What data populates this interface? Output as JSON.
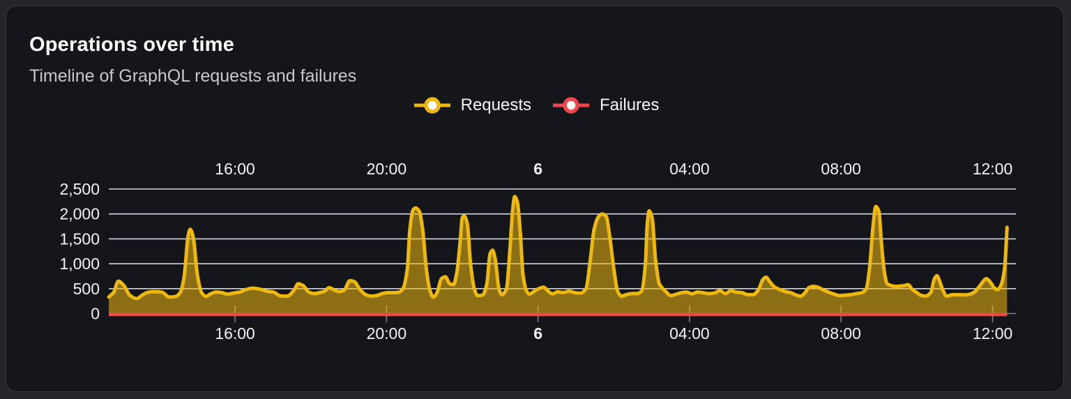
{
  "panel": {
    "title": "Operations over time",
    "subtitle": "Timeline of GraphQL requests and failures"
  },
  "legend": [
    {
      "label": "Requests",
      "color": "#eeb90f"
    },
    {
      "label": "Failures",
      "color": "#ef474c"
    }
  ],
  "colors": {
    "page_background": "#24262b",
    "panel_background": "#14161b",
    "gridline": "#d2d5df",
    "axis_line": "#85868c",
    "tick": "#85868c",
    "axis_label": "#f1f2f4",
    "requests_line": "#eeb90f",
    "requests_fill_opacity": 0.55,
    "failures_line": "#ef474c"
  },
  "chart_data": {
    "type": "area",
    "title": "Operations over time",
    "subtitle": "Timeline of GraphQL requests and failures",
    "grid": true,
    "legend_position": "top-center",
    "x_axis": {
      "kind": "time",
      "unit": "minutes_after_start",
      "start_clock": "12:40",
      "span_minutes": 1437,
      "labels_shown": "top and bottom",
      "ticks": [
        {
          "t": 200,
          "label": "16:00",
          "bold": false
        },
        {
          "t": 440,
          "label": "20:00",
          "bold": false
        },
        {
          "t": 680,
          "label": "6",
          "bold": true
        },
        {
          "t": 920,
          "label": "04:00",
          "bold": false
        },
        {
          "t": 1160,
          "label": "08:00",
          "bold": false
        },
        {
          "t": 1400,
          "label": "12:00",
          "bold": false
        }
      ]
    },
    "y_axis": {
      "min": 0,
      "max": 2500,
      "tick_interval": 500,
      "ticks": [
        {
          "v": 0,
          "label": "0"
        },
        {
          "v": 500,
          "label": "500"
        },
        {
          "v": 1000,
          "label": "1,000"
        },
        {
          "v": 1500,
          "label": "1,500"
        },
        {
          "v": 2000,
          "label": "2,000"
        },
        {
          "v": 2500,
          "label": "2,500"
        }
      ]
    },
    "series": [
      {
        "name": "Requests",
        "color": "#eeb90f",
        "fill_opacity": 0.55,
        "points": [
          [
            0,
            330
          ],
          [
            8,
            430
          ],
          [
            15,
            650
          ],
          [
            24,
            560
          ],
          [
            33,
            370
          ],
          [
            44,
            300
          ],
          [
            54,
            380
          ],
          [
            63,
            430
          ],
          [
            73,
            440
          ],
          [
            84,
            430
          ],
          [
            96,
            330
          ],
          [
            106,
            345
          ],
          [
            113,
            420
          ],
          [
            119,
            700
          ],
          [
            126,
            1580
          ],
          [
            129,
            1690
          ],
          [
            134,
            1520
          ],
          [
            140,
            800
          ],
          [
            147,
            420
          ],
          [
            154,
            345
          ],
          [
            162,
            400
          ],
          [
            170,
            430
          ],
          [
            179,
            420
          ],
          [
            188,
            390
          ],
          [
            197,
            410
          ],
          [
            207,
            430
          ],
          [
            217,
            480
          ],
          [
            228,
            510
          ],
          [
            239,
            490
          ],
          [
            250,
            450
          ],
          [
            261,
            430
          ],
          [
            272,
            355
          ],
          [
            283,
            350
          ],
          [
            294,
            480
          ],
          [
            300,
            600
          ],
          [
            308,
            560
          ],
          [
            317,
            430
          ],
          [
            325,
            400
          ],
          [
            334,
            420
          ],
          [
            342,
            450
          ],
          [
            349,
            520
          ],
          [
            356,
            480
          ],
          [
            365,
            440
          ],
          [
            373,
            470
          ],
          [
            382,
            660
          ],
          [
            389,
            640
          ],
          [
            398,
            480
          ],
          [
            407,
            380
          ],
          [
            415,
            350
          ],
          [
            424,
            360
          ],
          [
            433,
            400
          ],
          [
            442,
            420
          ],
          [
            451,
            420
          ],
          [
            460,
            430
          ],
          [
            466,
            500
          ],
          [
            473,
            900
          ],
          [
            477,
            1700
          ],
          [
            482,
            2080
          ],
          [
            486,
            2120
          ],
          [
            492,
            2050
          ],
          [
            497,
            1700
          ],
          [
            503,
            900
          ],
          [
            508,
            500
          ],
          [
            514,
            330
          ],
          [
            520,
            420
          ],
          [
            527,
            700
          ],
          [
            533,
            740
          ],
          [
            540,
            600
          ],
          [
            546,
            580
          ],
          [
            551,
            800
          ],
          [
            557,
            1500
          ],
          [
            560,
            1930
          ],
          [
            563,
            1960
          ],
          [
            568,
            1800
          ],
          [
            573,
            1000
          ],
          [
            579,
            500
          ],
          [
            584,
            360
          ],
          [
            592,
            370
          ],
          [
            599,
            600
          ],
          [
            604,
            1200
          ],
          [
            608,
            1270
          ],
          [
            612,
            1100
          ],
          [
            618,
            500
          ],
          [
            623,
            380
          ],
          [
            630,
            500
          ],
          [
            635,
            1200
          ],
          [
            640,
            2100
          ],
          [
            643,
            2350
          ],
          [
            647,
            2250
          ],
          [
            652,
            1600
          ],
          [
            656,
            800
          ],
          [
            662,
            450
          ],
          [
            666,
            390
          ],
          [
            672,
            430
          ],
          [
            678,
            480
          ],
          [
            685,
            520
          ],
          [
            689,
            530
          ],
          [
            696,
            450
          ],
          [
            703,
            395
          ],
          [
            711,
            435
          ],
          [
            720,
            420
          ],
          [
            729,
            450
          ],
          [
            738,
            420
          ],
          [
            747,
            410
          ],
          [
            756,
            500
          ],
          [
            762,
            1000
          ],
          [
            769,
            1700
          ],
          [
            776,
            1950
          ],
          [
            781,
            2000
          ],
          [
            788,
            1950
          ],
          [
            793,
            1600
          ],
          [
            800,
            900
          ],
          [
            806,
            450
          ],
          [
            812,
            350
          ],
          [
            820,
            380
          ],
          [
            829,
            400
          ],
          [
            837,
            400
          ],
          [
            844,
            450
          ],
          [
            850,
            1000
          ],
          [
            853,
            1800
          ],
          [
            856,
            2060
          ],
          [
            861,
            1900
          ],
          [
            866,
            1100
          ],
          [
            872,
            600
          ],
          [
            877,
            510
          ],
          [
            884,
            420
          ],
          [
            890,
            360
          ],
          [
            899,
            390
          ],
          [
            908,
            420
          ],
          [
            915,
            430
          ],
          [
            924,
            395
          ],
          [
            932,
            430
          ],
          [
            941,
            420
          ],
          [
            950,
            400
          ],
          [
            959,
            410
          ],
          [
            968,
            460
          ],
          [
            977,
            400
          ],
          [
            985,
            460
          ],
          [
            994,
            430
          ],
          [
            1003,
            420
          ],
          [
            1012,
            380
          ],
          [
            1021,
            380
          ],
          [
            1030,
            500
          ],
          [
            1036,
            680
          ],
          [
            1041,
            730
          ],
          [
            1047,
            640
          ],
          [
            1054,
            540
          ],
          [
            1063,
            480
          ],
          [
            1072,
            440
          ],
          [
            1080,
            420
          ],
          [
            1089,
            370
          ],
          [
            1096,
            350
          ],
          [
            1103,
            420
          ],
          [
            1109,
            520
          ],
          [
            1116,
            545
          ],
          [
            1123,
            530
          ],
          [
            1131,
            480
          ],
          [
            1140,
            430
          ],
          [
            1149,
            390
          ],
          [
            1158,
            360
          ],
          [
            1167,
            370
          ],
          [
            1176,
            380
          ],
          [
            1184,
            400
          ],
          [
            1193,
            420
          ],
          [
            1200,
            500
          ],
          [
            1205,
            900
          ],
          [
            1211,
            1800
          ],
          [
            1215,
            2150
          ],
          [
            1220,
            2050
          ],
          [
            1224,
            1400
          ],
          [
            1229,
            800
          ],
          [
            1233,
            600
          ],
          [
            1240,
            560
          ],
          [
            1246,
            545
          ],
          [
            1253,
            550
          ],
          [
            1260,
            560
          ],
          [
            1266,
            580
          ],
          [
            1273,
            480
          ],
          [
            1279,
            430
          ],
          [
            1286,
            370
          ],
          [
            1294,
            350
          ],
          [
            1302,
            420
          ],
          [
            1308,
            700
          ],
          [
            1312,
            760
          ],
          [
            1316,
            650
          ],
          [
            1322,
            450
          ],
          [
            1327,
            350
          ],
          [
            1335,
            375
          ],
          [
            1344,
            380
          ],
          [
            1353,
            375
          ],
          [
            1361,
            380
          ],
          [
            1370,
            420
          ],
          [
            1379,
            540
          ],
          [
            1386,
            660
          ],
          [
            1390,
            700
          ],
          [
            1397,
            620
          ],
          [
            1403,
            510
          ],
          [
            1408,
            480
          ],
          [
            1413,
            560
          ],
          [
            1419,
            900
          ],
          [
            1423,
            1730
          ]
        ]
      },
      {
        "name": "Failures",
        "color": "#ef474c",
        "points": [
          [
            0,
            0
          ],
          [
            1423,
            0
          ]
        ]
      }
    ]
  }
}
